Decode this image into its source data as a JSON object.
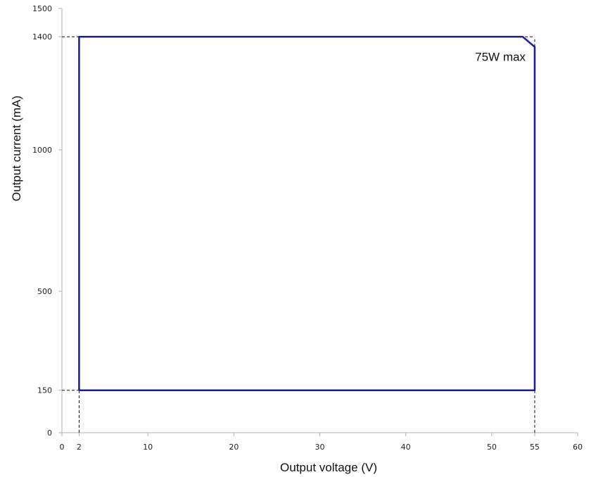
{
  "chart_data": {
    "type": "line",
    "title": "",
    "xlabel": "Output voltage (V)",
    "ylabel": "Output current (mA)",
    "xlim": [
      0,
      60
    ],
    "ylim": [
      0,
      1500
    ],
    "x_ticks": [
      0,
      2,
      10,
      20,
      30,
      40,
      50,
      55,
      60
    ],
    "y_ticks": [
      0,
      150,
      500,
      1000,
      1400,
      1500
    ],
    "grid": false,
    "series": [
      {
        "color": "#1a1aa8",
        "points": [
          {
            "x": 2,
            "y": 150
          },
          {
            "x": 2,
            "y": 1400
          },
          {
            "x": 53.6,
            "y": 1400
          },
          {
            "x": 55,
            "y": 1364
          },
          {
            "x": 55,
            "y": 150
          },
          {
            "x": 2,
            "y": 150
          }
        ]
      }
    ],
    "reference_lines": [
      {
        "axis": "y",
        "value": 1400,
        "x_from": 0,
        "x_to": 55
      },
      {
        "axis": "y",
        "value": 150,
        "x_from": 0,
        "x_to": 2
      },
      {
        "axis": "x",
        "value": 2,
        "y_from": 0,
        "y_to": 150
      },
      {
        "axis": "x",
        "value": 55,
        "y_from": 0,
        "y_to": 150
      },
      {
        "axis": "x",
        "value": 55,
        "y_from": 1364,
        "y_to": 1400
      }
    ],
    "annotations": [
      {
        "text": "75W max",
        "x": 51,
        "y": 1315
      }
    ]
  }
}
